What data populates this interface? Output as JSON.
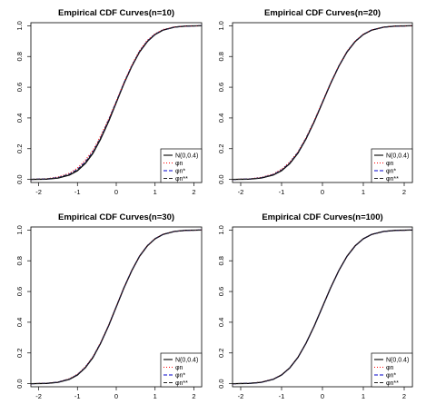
{
  "chart_data": [
    {
      "type": "line",
      "title": "Empirical CDF Curves(n=10)",
      "xlabel": "",
      "ylabel": "",
      "xlim": [
        -2.2,
        2.2
      ],
      "ylim": [
        -0.02,
        1.02
      ],
      "xticks": [
        "-2",
        "-1",
        "0",
        "1",
        "2"
      ],
      "yticks": [
        "0.0",
        "0.2",
        "0.4",
        "0.6",
        "0.8",
        "1.0"
      ],
      "x": [
        -2.2,
        -1.8,
        -1.5,
        -1.2,
        -1.0,
        -0.8,
        -0.6,
        -0.4,
        -0.2,
        0.0,
        0.2,
        0.4,
        0.6,
        0.8,
        1.0,
        1.2,
        1.5,
        1.8,
        2.2
      ],
      "series": [
        {
          "name": "N(0,0.4)",
          "color": "#000000",
          "dash": "solid",
          "values": [
            0.0003,
            0.002,
            0.009,
            0.029,
            0.057,
            0.103,
            0.171,
            0.264,
            0.376,
            0.5,
            0.624,
            0.736,
            0.829,
            0.897,
            0.943,
            0.971,
            0.991,
            0.998,
            1.0
          ]
        },
        {
          "name": "φn",
          "color": "#ff0000",
          "dash": "dotted",
          "values": [
            0.0,
            0.004,
            0.016,
            0.04,
            0.074,
            0.124,
            0.19,
            0.284,
            0.392,
            0.508,
            0.632,
            0.744,
            0.838,
            0.906,
            0.948,
            0.975,
            0.992,
            0.998,
            1.0
          ]
        },
        {
          "name": "φn*",
          "color": "#0000cc",
          "dash": "dashed",
          "values": [
            0.0,
            0.003,
            0.012,
            0.035,
            0.065,
            0.112,
            0.18,
            0.272,
            0.384,
            0.505,
            0.628,
            0.738,
            0.832,
            0.9,
            0.945,
            0.972,
            0.991,
            0.998,
            1.0
          ]
        },
        {
          "name": "φn**",
          "color": "#222222",
          "dash": "dashed",
          "values": [
            0.0,
            0.003,
            0.011,
            0.033,
            0.062,
            0.108,
            0.177,
            0.27,
            0.381,
            0.503,
            0.626,
            0.737,
            0.831,
            0.899,
            0.944,
            0.972,
            0.991,
            0.998,
            1.0
          ]
        }
      ]
    },
    {
      "type": "line",
      "title": "Empirical CDF Curves(n=20)",
      "xlabel": "",
      "ylabel": "",
      "xlim": [
        -2.2,
        2.2
      ],
      "ylim": [
        -0.02,
        1.02
      ],
      "xticks": [
        "-2",
        "-1",
        "0",
        "1",
        "2"
      ],
      "yticks": [
        "0.0",
        "0.2",
        "0.4",
        "0.6",
        "0.8",
        "1.0"
      ],
      "x": [
        -2.2,
        -1.8,
        -1.5,
        -1.2,
        -1.0,
        -0.8,
        -0.6,
        -0.4,
        -0.2,
        0.0,
        0.2,
        0.4,
        0.6,
        0.8,
        1.0,
        1.2,
        1.5,
        1.8,
        2.2
      ],
      "series": [
        {
          "name": "N(0,0.4)",
          "color": "#000000",
          "dash": "solid",
          "values": [
            0.0003,
            0.002,
            0.009,
            0.029,
            0.057,
            0.103,
            0.171,
            0.264,
            0.376,
            0.5,
            0.624,
            0.736,
            0.829,
            0.897,
            0.943,
            0.971,
            0.991,
            0.998,
            1.0
          ]
        },
        {
          "name": "φn",
          "color": "#ff0000",
          "dash": "dotted",
          "values": [
            0.0,
            0.003,
            0.013,
            0.036,
            0.066,
            0.113,
            0.18,
            0.272,
            0.383,
            0.505,
            0.628,
            0.739,
            0.833,
            0.9,
            0.945,
            0.973,
            0.991,
            0.998,
            1.0
          ]
        },
        {
          "name": "φn*",
          "color": "#0000cc",
          "dash": "dashed",
          "values": [
            0.0,
            0.002,
            0.011,
            0.032,
            0.061,
            0.107,
            0.175,
            0.268,
            0.379,
            0.502,
            0.626,
            0.737,
            0.831,
            0.898,
            0.944,
            0.972,
            0.991,
            0.998,
            1.0
          ]
        },
        {
          "name": "φn**",
          "color": "#222222",
          "dash": "dashed",
          "values": [
            0.0,
            0.002,
            0.01,
            0.031,
            0.06,
            0.106,
            0.174,
            0.267,
            0.378,
            0.501,
            0.625,
            0.737,
            0.83,
            0.898,
            0.943,
            0.971,
            0.991,
            0.998,
            1.0
          ]
        }
      ]
    },
    {
      "type": "line",
      "title": "Empirical CDF Curves(n=30)",
      "xlabel": "",
      "ylabel": "",
      "xlim": [
        -2.2,
        2.2
      ],
      "ylim": [
        -0.02,
        1.02
      ],
      "xticks": [
        "-2",
        "-1",
        "0",
        "1",
        "2"
      ],
      "yticks": [
        "0.0",
        "0.2",
        "0.4",
        "0.6",
        "0.8",
        "1.0"
      ],
      "x": [
        -2.2,
        -1.8,
        -1.5,
        -1.2,
        -1.0,
        -0.8,
        -0.6,
        -0.4,
        -0.2,
        0.0,
        0.2,
        0.4,
        0.6,
        0.8,
        1.0,
        1.2,
        1.5,
        1.8,
        2.2
      ],
      "series": [
        {
          "name": "N(0,0.4)",
          "color": "#000000",
          "dash": "solid",
          "values": [
            0.0003,
            0.002,
            0.009,
            0.029,
            0.057,
            0.103,
            0.171,
            0.264,
            0.376,
            0.5,
            0.624,
            0.736,
            0.829,
            0.897,
            0.943,
            0.971,
            0.991,
            0.998,
            1.0
          ]
        },
        {
          "name": "φn",
          "color": "#ff0000",
          "dash": "dotted",
          "values": [
            0.0,
            0.003,
            0.011,
            0.033,
            0.062,
            0.109,
            0.177,
            0.269,
            0.38,
            0.503,
            0.627,
            0.738,
            0.831,
            0.899,
            0.944,
            0.972,
            0.991,
            0.998,
            1.0
          ]
        },
        {
          "name": "φn*",
          "color": "#0000cc",
          "dash": "dashed",
          "values": [
            0.0,
            0.002,
            0.01,
            0.031,
            0.059,
            0.105,
            0.173,
            0.266,
            0.377,
            0.501,
            0.625,
            0.737,
            0.83,
            0.898,
            0.943,
            0.971,
            0.991,
            0.998,
            1.0
          ]
        },
        {
          "name": "φn**",
          "color": "#222222",
          "dash": "dashed",
          "values": [
            0.0,
            0.002,
            0.01,
            0.03,
            0.058,
            0.104,
            0.172,
            0.265,
            0.377,
            0.5,
            0.624,
            0.736,
            0.83,
            0.897,
            0.943,
            0.971,
            0.991,
            0.998,
            1.0
          ]
        }
      ]
    },
    {
      "type": "line",
      "title": "Empirical CDF Curves(n=100)",
      "xlabel": "",
      "ylabel": "",
      "xlim": [
        -2.2,
        2.2
      ],
      "ylim": [
        -0.02,
        1.02
      ],
      "xticks": [
        "-2",
        "-1",
        "0",
        "1",
        "2"
      ],
      "yticks": [
        "0.0",
        "0.2",
        "0.4",
        "0.6",
        "0.8",
        "1.0"
      ],
      "x": [
        -2.2,
        -1.8,
        -1.5,
        -1.2,
        -1.0,
        -0.8,
        -0.6,
        -0.4,
        -0.2,
        0.0,
        0.2,
        0.4,
        0.6,
        0.8,
        1.0,
        1.2,
        1.5,
        1.8,
        2.2
      ],
      "series": [
        {
          "name": "N(0,0.4)",
          "color": "#000000",
          "dash": "solid",
          "values": [
            0.0003,
            0.002,
            0.009,
            0.029,
            0.057,
            0.103,
            0.171,
            0.264,
            0.376,
            0.5,
            0.624,
            0.736,
            0.829,
            0.897,
            0.943,
            0.971,
            0.991,
            0.998,
            1.0
          ]
        },
        {
          "name": "φn",
          "color": "#ff0000",
          "dash": "dotted",
          "values": [
            0.0,
            0.002,
            0.01,
            0.03,
            0.058,
            0.104,
            0.172,
            0.265,
            0.377,
            0.501,
            0.625,
            0.737,
            0.83,
            0.898,
            0.943,
            0.971,
            0.991,
            0.998,
            1.0
          ]
        },
        {
          "name": "φn*",
          "color": "#0000cc",
          "dash": "dashed",
          "values": [
            0.0,
            0.002,
            0.009,
            0.029,
            0.057,
            0.103,
            0.171,
            0.264,
            0.376,
            0.5,
            0.624,
            0.736,
            0.829,
            0.897,
            0.943,
            0.971,
            0.991,
            0.998,
            1.0
          ]
        },
        {
          "name": "φn**",
          "color": "#222222",
          "dash": "dashed",
          "values": [
            0.0,
            0.002,
            0.009,
            0.029,
            0.057,
            0.103,
            0.171,
            0.264,
            0.376,
            0.5,
            0.624,
            0.736,
            0.829,
            0.897,
            0.943,
            0.971,
            0.991,
            0.998,
            1.0
          ]
        }
      ]
    }
  ]
}
